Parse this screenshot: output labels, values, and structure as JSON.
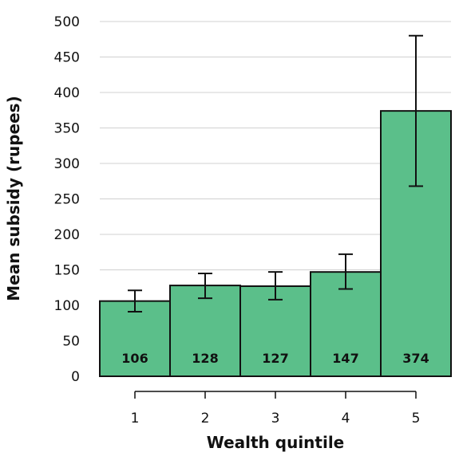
{
  "chart_data": {
    "type": "bar",
    "title": "",
    "xlabel": "Wealth quintile",
    "ylabel": "Mean subsidy (rupees)",
    "categories": [
      "1",
      "2",
      "3",
      "4",
      "5"
    ],
    "values": [
      106,
      128,
      127,
      147,
      374
    ],
    "value_labels": [
      "106",
      "128",
      "127",
      "147",
      "374"
    ],
    "error_low": [
      91,
      110,
      108,
      123,
      268
    ],
    "error_high": [
      121,
      145,
      147,
      172,
      480
    ],
    "ylim": [
      0,
      500
    ],
    "yticks": [
      0,
      50,
      100,
      150,
      200,
      250,
      300,
      350,
      400,
      450,
      500
    ],
    "ytick_labels": [
      "0",
      "50",
      "100",
      "150",
      "200",
      "250",
      "300",
      "350",
      "400",
      "450",
      "500"
    ],
    "grid": true,
    "colors": {
      "bar": "#5bbf8a"
    }
  }
}
